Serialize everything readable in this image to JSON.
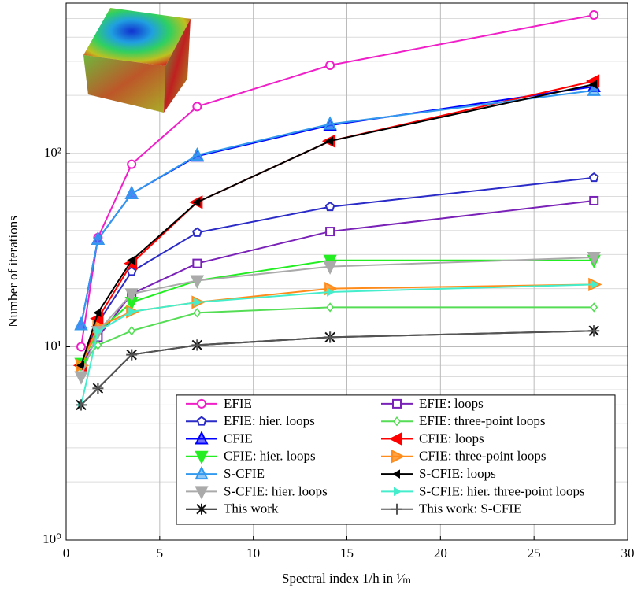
{
  "chart_data": {
    "type": "line",
    "xlabel": "Spectral index 1/h in ¹⁄ₘ",
    "ylabel": "Number of iterations",
    "x": [
      0.8,
      1.7,
      3.5,
      7.0,
      14.1,
      28.2
    ],
    "xlim": [
      0,
      30
    ],
    "xticks": [
      0,
      5,
      10,
      15,
      20,
      25,
      30
    ],
    "ylim": [
      1,
      600
    ],
    "log_y": true,
    "yticks": [
      {
        "value": 1,
        "label": "10⁰"
      },
      {
        "value": 10,
        "label": "10¹"
      },
      {
        "value": 100,
        "label": "10²"
      }
    ],
    "grid": true,
    "minor_grid": true,
    "legend_position": "lower right",
    "legend_columns": 2,
    "series": [
      {
        "name": "EFIE",
        "color": "#f01fc8",
        "marker": "circle",
        "values": [
          10,
          36.7,
          88,
          175,
          286,
          521
        ]
      },
      {
        "name": "EFIE: loops",
        "color": "#7a22b8",
        "marker": "square",
        "values": [
          8,
          11.2,
          18.8,
          27,
          39.5,
          57
        ]
      },
      {
        "name": "EFIE: hier. loops",
        "color": "#2b2bc8",
        "marker": "pentagon",
        "values": [
          8.1,
          13.3,
          24.5,
          39,
          53,
          75
        ]
      },
      {
        "name": "EFIE: three-point loops",
        "color": "#55dd55",
        "marker": "diamond",
        "values": [
          8,
          10.2,
          12.1,
          15,
          16,
          16
        ]
      },
      {
        "name": "CFIE",
        "color": "#0000ff",
        "marker": "triangle-up",
        "values": [
          13,
          36,
          62,
          97,
          140,
          222
        ]
      },
      {
        "name": "CFIE: loops",
        "color": "#ff0000",
        "marker": "triangle-left",
        "values": [
          8,
          14,
          27,
          56,
          116,
          237
        ]
      },
      {
        "name": "CFIE: hier. loops",
        "color": "#22ee22",
        "marker": "triangle-down",
        "values": [
          8.2,
          12,
          17,
          22,
          28,
          28
        ]
      },
      {
        "name": "CFIE: three-point loops",
        "color": "#ff8c1a",
        "marker": "triangle-right",
        "values": [
          8,
          12.7,
          15.2,
          17,
          20,
          21
        ]
      },
      {
        "name": "S-CFIE",
        "color": "#3399ee",
        "marker": "triangle-up",
        "values": [
          13,
          36,
          62,
          98,
          142,
          212
        ]
      },
      {
        "name": "S-CFIE: loops",
        "color": "#000000",
        "marker": "small-left",
        "values": [
          8,
          15,
          28,
          56,
          116,
          228
        ]
      },
      {
        "name": "S-CFIE: hier. loops",
        "color": "#aaaaaa",
        "marker": "triangle-down",
        "values": [
          7,
          12,
          18.8,
          22,
          26,
          29
        ]
      },
      {
        "name": "S-CFIE: hier. three-point loops",
        "color": "#44eecc",
        "marker": "small-right",
        "values": [
          5,
          12,
          15.2,
          17,
          19.2,
          21
        ]
      },
      {
        "name": "This work",
        "color": "#111111",
        "marker": "star",
        "values": [
          5,
          6.1,
          9.1,
          10.2,
          11.2,
          12.1
        ]
      },
      {
        "name": "This work: S-CFIE",
        "color": "#555555",
        "marker": "plus",
        "values": [
          5,
          6.1,
          9.1,
          10.2,
          11.2,
          12.1
        ]
      }
    ]
  }
}
